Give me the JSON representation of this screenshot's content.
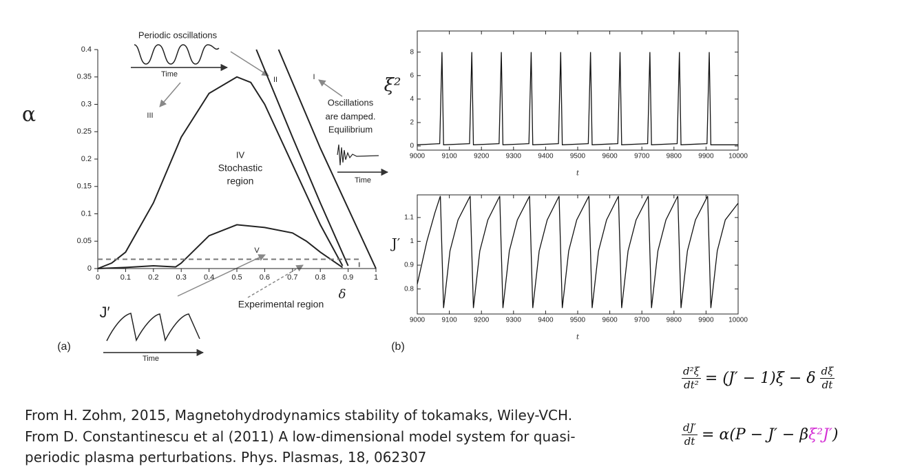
{
  "chart_data": [
    {
      "type": "line",
      "xlabel": "δ",
      "ylabel": "α",
      "xlim": [
        0,
        1
      ],
      "ylim": [
        0,
        0.4
      ],
      "xticks": [
        0,
        0.1,
        0.2,
        0.3,
        0.4,
        0.5,
        0.6,
        0.7,
        0.8,
        0.9,
        1
      ],
      "yticks": [
        0,
        0.05,
        0.1,
        0.15,
        0.2,
        0.25,
        0.3,
        0.35,
        0.4
      ],
      "series": [
        {
          "color": "#222",
          "x": [
            0,
            0.05,
            0.1,
            0.2,
            0.3,
            0.4,
            0.5,
            0.55,
            0.6,
            0.7,
            0.8,
            0.88
          ],
          "values": [
            0,
            0.01,
            0.03,
            0.12,
            0.24,
            0.32,
            0.35,
            0.34,
            0.3,
            0.19,
            0.08,
            0.005
          ]
        },
        {
          "color": "#222",
          "x": [
            0,
            0.1,
            0.2,
            0.28,
            0.3,
            0.35,
            0.4,
            0.5,
            0.6,
            0.7,
            0.75,
            0.8,
            0.88
          ],
          "values": [
            0,
            0.002,
            0.005,
            0.003,
            0.01,
            0.035,
            0.06,
            0.08,
            0.075,
            0.065,
            0.05,
            0.03,
            0.002
          ]
        },
        {
          "color": "#222",
          "x": [
            0.57,
            0.7,
            0.8,
            0.9
          ],
          "values": [
            0.4,
            0.24,
            0.12,
            0.005
          ]
        },
        {
          "color": "#222",
          "x": [
            0.65,
            0.8,
            0.9,
            1
          ],
          "values": [
            0.4,
            0.22,
            0.11,
            0
          ]
        },
        {
          "color": "#777",
          "dashed": true,
          "x": [
            0,
            0.94,
            0.94
          ],
          "values": [
            0.017,
            0.017,
            0
          ]
        }
      ],
      "annotations": [
        "Periodic oscillations",
        "Time",
        "III",
        "II",
        "I",
        "Oscillations",
        "are damped.",
        "Equilibrium",
        "IV",
        "Stochastic",
        "region",
        "V",
        "Experimental region",
        "J′",
        "Time",
        "Time",
        "(a)"
      ]
    },
    {
      "type": "line",
      "xlabel": "t",
      "ylabel": "ξ²",
      "xlim": [
        9000,
        10000
      ],
      "ylim": [
        -0.35,
        9.8
      ],
      "xticks": [
        9000,
        9100,
        9200,
        9300,
        9400,
        9500,
        9600,
        9700,
        9800,
        9900,
        10000
      ],
      "yticks": [
        0,
        2,
        4,
        6,
        8
      ],
      "series": [
        {
          "color": "#111",
          "x": [
            9000,
            9070,
            9077,
            9082,
            9163,
            9170,
            9175,
            9255,
            9262,
            9267,
            9348,
            9355,
            9360,
            9440,
            9447,
            9452,
            9533,
            9540,
            9545,
            9625,
            9632,
            9637,
            9718,
            9725,
            9730,
            9810,
            9817,
            9822,
            9903,
            9910,
            9915,
            10000
          ],
          "values": [
            0.1,
            0.2,
            8,
            0.1,
            0.2,
            8,
            0.1,
            0.2,
            8,
            0.1,
            0.2,
            8,
            0.1,
            0.2,
            8,
            0.1,
            0.2,
            8,
            0.1,
            0.2,
            8,
            0.1,
            0.2,
            8,
            0.1,
            0.2,
            8,
            0.1,
            0.2,
            8,
            0.1,
            0.1
          ]
        }
      ],
      "annotations": [
        "(b)"
      ]
    },
    {
      "type": "line",
      "xlabel": "t",
      "ylabel": "J′",
      "xlim": [
        9000,
        10000
      ],
      "ylim": [
        0.695,
        1.195
      ],
      "xticks": [
        9000,
        9100,
        9200,
        9300,
        9400,
        9500,
        9600,
        9700,
        9800,
        9900,
        10000
      ],
      "yticks": [
        0.8,
        0.9,
        1,
        1.1
      ],
      "series": [
        {
          "color": "#111",
          "x": [
            9000,
            9030,
            9055,
            9072,
            9082,
            9102,
            9127,
            9165,
            9175,
            9195,
            9220,
            9257,
            9267,
            9287,
            9312,
            9350,
            9360,
            9380,
            9405,
            9442,
            9452,
            9472,
            9497,
            9535,
            9545,
            9565,
            9590,
            9627,
            9637,
            9657,
            9682,
            9720,
            9730,
            9750,
            9775,
            9812,
            9822,
            9842,
            9867,
            9905,
            9915,
            9935,
            9960,
            10000
          ],
          "values": [
            0.82,
            1.0,
            1.12,
            1.19,
            0.72,
            0.96,
            1.09,
            1.19,
            0.72,
            0.96,
            1.09,
            1.19,
            0.72,
            0.96,
            1.09,
            1.19,
            0.72,
            0.96,
            1.09,
            1.19,
            0.72,
            0.96,
            1.09,
            1.19,
            0.72,
            0.96,
            1.09,
            1.19,
            0.72,
            0.96,
            1.09,
            1.19,
            0.72,
            0.96,
            1.09,
            1.19,
            0.72,
            0.96,
            1.09,
            1.19,
            0.72,
            0.96,
            1.09,
            1.16
          ]
        }
      ],
      "annotations": []
    }
  ],
  "caption": [
    "From H. Zohm, 2015, Magnetohydrodynamics stability of tokamaks, Wiley-VCH.",
    "From D. Constantinescu et al (2011) A low-dimensional model system for quasi-",
    "periodic plasma perturbations. Phys. Plasmas, 18, 062307"
  ],
  "equations": [
    {
      "lhs_num": "d²ξ",
      "lhs_den": "dt²",
      "rhs": "= (J′ − 1)ξ − δ",
      "rhs_num": "dξ",
      "rhs_den": "dt"
    },
    {
      "lhs_num": "dJ′",
      "lhs_den": "dt",
      "rhs": "= α(P − J′ − β",
      "highlight": "ξ²J′",
      "tail": ")"
    }
  ]
}
